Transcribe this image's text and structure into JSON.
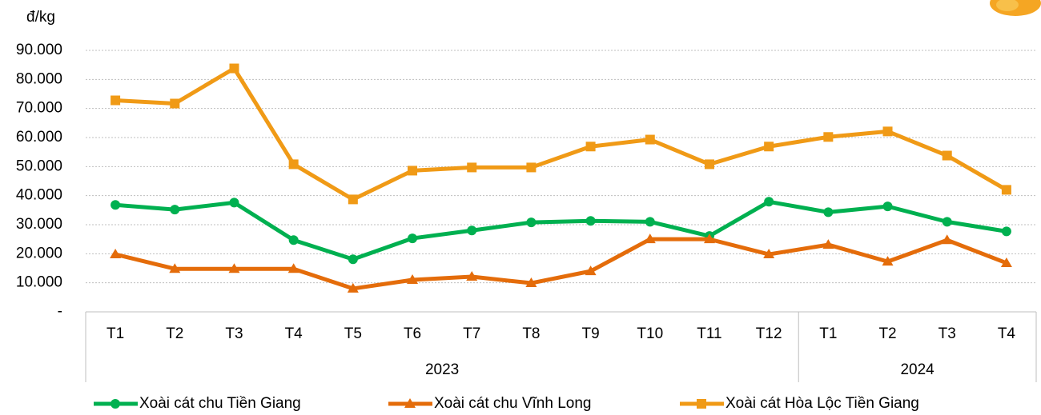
{
  "chart_data": {
    "type": "line",
    "y_unit_label": "đ/kg",
    "category_groups": [
      {
        "name": "2023",
        "categories": [
          "T1",
          "T2",
          "T3",
          "T4",
          "T5",
          "T6",
          "T7",
          "T8",
          "T9",
          "T10",
          "T11",
          "T12"
        ]
      },
      {
        "name": "2024",
        "categories": [
          "T1",
          "T2",
          "T3",
          "T4"
        ]
      }
    ],
    "series": [
      {
        "name": "Xoài cát chu Tiền Giang",
        "color": "#00b050",
        "marker": "circle",
        "values": [
          36800,
          35200,
          37600,
          24700,
          18100,
          25300,
          28000,
          30800,
          31300,
          31000,
          26100,
          37900,
          34300,
          36300,
          31000,
          27700
        ]
      },
      {
        "name": "Xoài cát chu Vĩnh Long",
        "color": "#e46c0a",
        "marker": "triangle",
        "values": [
          19800,
          14800,
          14800,
          14800,
          8000,
          11000,
          12100,
          9900,
          14000,
          25000,
          25000,
          19800,
          23100,
          17300,
          24700,
          16800
        ]
      },
      {
        "name": "Xoài cát Hòa Lộc Tiền Giang",
        "color": "#f09a16",
        "marker": "square",
        "values": [
          72800,
          71700,
          83800,
          50800,
          38700,
          48600,
          49700,
          49700,
          56900,
          59300,
          50800,
          56900,
          60200,
          62100,
          53800,
          42000
        ]
      }
    ],
    "ylim": [
      0,
      90000
    ],
    "yticks": [
      {
        "value": 0,
        "label": "-"
      },
      {
        "value": 10000,
        "label": "10.000"
      },
      {
        "value": 20000,
        "label": "20.000"
      },
      {
        "value": 30000,
        "label": "30.000"
      },
      {
        "value": 40000,
        "label": "40.000"
      },
      {
        "value": 50000,
        "label": "50.000"
      },
      {
        "value": 60000,
        "label": "60.000"
      },
      {
        "value": 70000,
        "label": "70.000"
      },
      {
        "value": 80000,
        "label": "80.000"
      },
      {
        "value": 90000,
        "label": "90.000"
      }
    ],
    "grid": true,
    "legend": "bottom"
  }
}
